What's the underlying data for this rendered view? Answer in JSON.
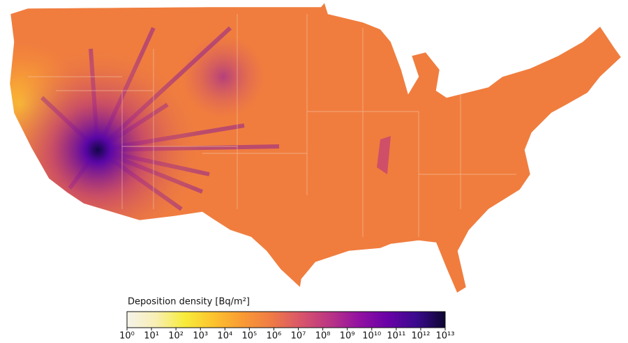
{
  "colorbar": {
    "title": "Deposition density [Bq/m²]",
    "scale": "log",
    "lim": [
      1,
      10000000000000
    ],
    "colors": [
      "#f6f3ea",
      "#f8efb4",
      "#f7ec3a",
      "#fcc22e",
      "#f99a35",
      "#ef7b45",
      "#d9566a",
      "#bb3584",
      "#9312a1",
      "#6a02a7",
      "#3a0a8e",
      "#0d0530"
    ],
    "ticks": [
      {
        "value": 1,
        "label": "10⁰"
      },
      {
        "value": 10,
        "label": "10¹"
      },
      {
        "value": 100,
        "label": "10²"
      },
      {
        "value": 1000,
        "label": "10³"
      },
      {
        "value": 10000,
        "label": "10⁴"
      },
      {
        "value": 100000,
        "label": "10⁵"
      },
      {
        "value": 1000000,
        "label": "10⁶"
      },
      {
        "value": 10000000,
        "label": "10⁷"
      },
      {
        "value": 100000000,
        "label": "10⁸"
      },
      {
        "value": 1000000000,
        "label": "10⁹"
      },
      {
        "value": 10000000000,
        "label": "10¹⁰"
      },
      {
        "value": 100000000000,
        "label": "10¹¹"
      },
      {
        "value": 1000000000000,
        "label": "10¹²"
      },
      {
        "value": 10000000000000,
        "label": "10¹³"
      }
    ]
  }
}
